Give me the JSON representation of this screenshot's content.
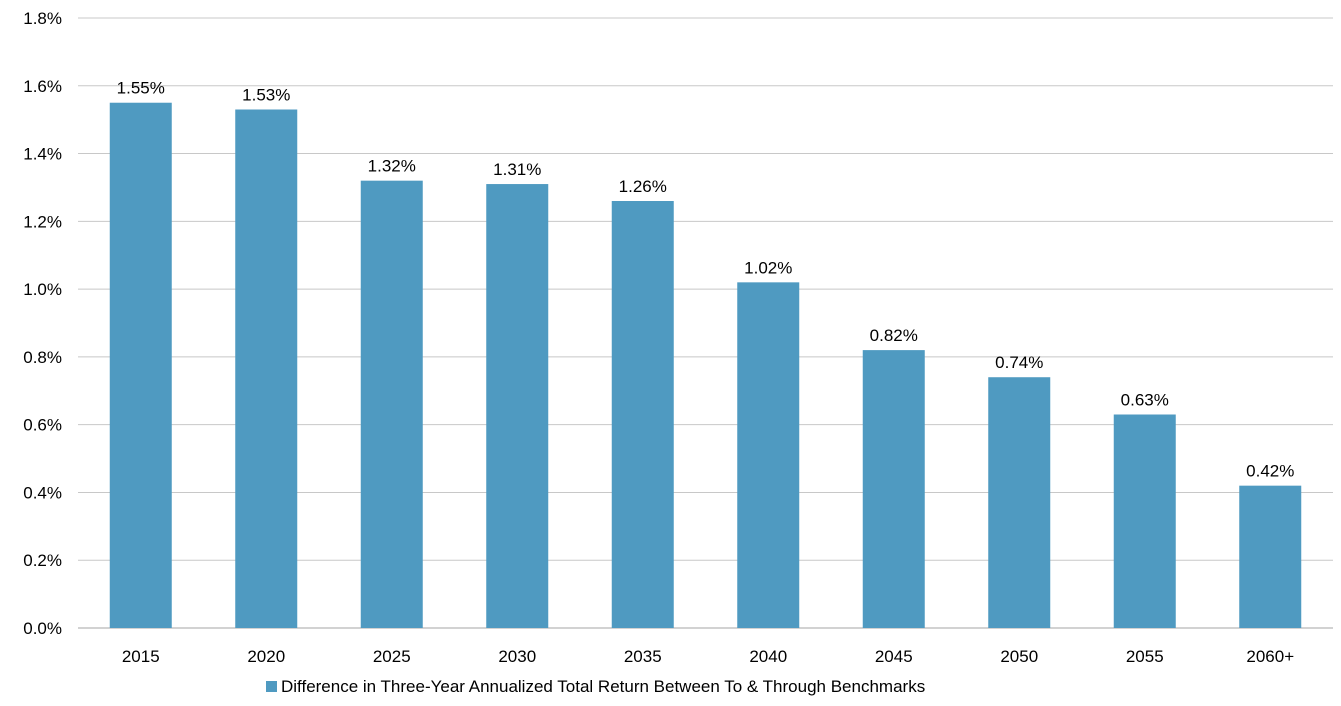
{
  "chart_data": {
    "type": "bar",
    "title": "",
    "xlabel": "",
    "ylabel": "",
    "categories": [
      "2015",
      "2020",
      "2025",
      "2030",
      "2035",
      "2040",
      "2045",
      "2050",
      "2055",
      "2060+"
    ],
    "series": [
      {
        "name": "Difference in Three-Year Annualized Total Return Between To & Through Benchmarks",
        "values": [
          1.55,
          1.53,
          1.32,
          1.31,
          1.26,
          1.02,
          0.82,
          0.74,
          0.63,
          0.42
        ],
        "labels": [
          "1.55%",
          "1.53%",
          "1.32%",
          "1.31%",
          "1.26%",
          "1.02%",
          "0.82%",
          "0.74%",
          "0.63%",
          "0.42%"
        ],
        "color": "#4f9ac1"
      }
    ],
    "ylim": [
      0,
      1.8
    ],
    "yticks": [
      "0.0%",
      "0.2%",
      "0.4%",
      "0.6%",
      "0.8%",
      "1.0%",
      "1.2%",
      "1.4%",
      "1.6%",
      "1.8%"
    ],
    "grid": true,
    "gridColor": "#c8c8c8",
    "legend": "bottom-center"
  }
}
